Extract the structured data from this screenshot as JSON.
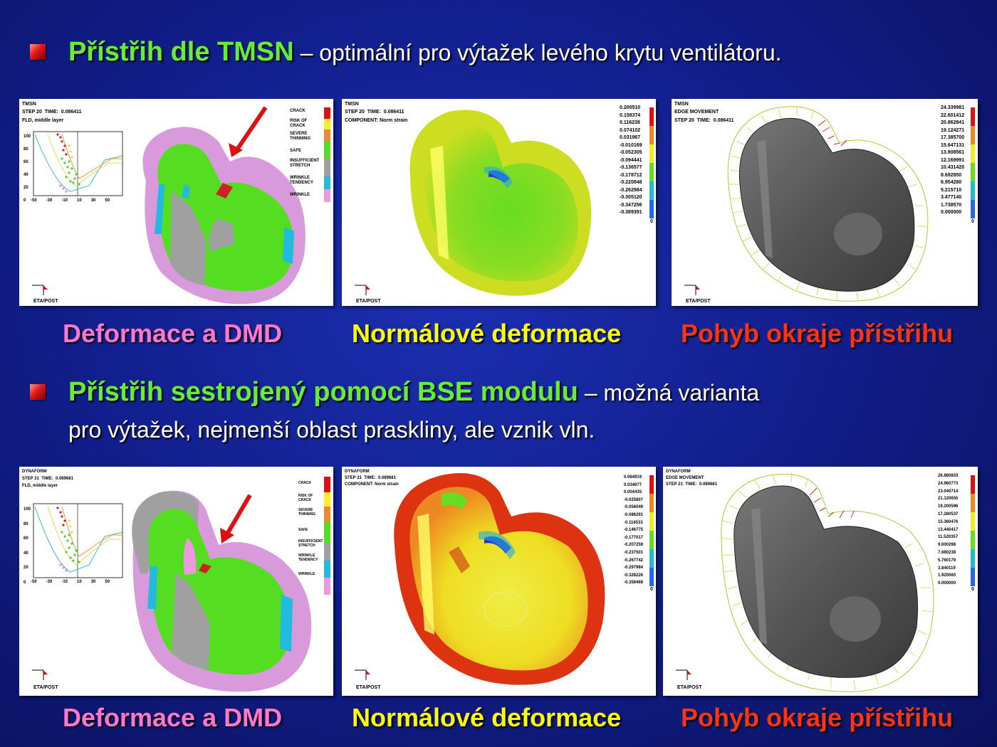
{
  "section1": {
    "heading": "Přístřih dle TMSN",
    "rest": " – optimální pro výtažek levého krytu ventilátoru."
  },
  "section2": {
    "heading": "Přístřih sestrojený pomocí BSE modulu",
    "rest": " – možná varianta",
    "line2": "pro výtažek, nejmenší oblast praskliny, ale vznik vln."
  },
  "captions": {
    "deformace": "Deformace a DMD",
    "normalove": "Normálové deformace",
    "pohyb": "Pohyb okraje přístřihu"
  },
  "colors": {
    "green": "#66ee33",
    "pink": "#ff77cc",
    "yellow": "#ffff00",
    "red": "#ff3311"
  },
  "row1": {
    "fld": {
      "title": "TMSN",
      "step": "STEP 20",
      "time_label": "TIME:",
      "time": "0.086411",
      "layer": "FLD, middle layer",
      "yticks": [
        "100",
        "80",
        "60",
        "40",
        "20",
        "0"
      ],
      "xticks": [
        "-50",
        "-30",
        "-10",
        "10",
        "30",
        "50"
      ],
      "legend": [
        "CRACK",
        "RISK OF CRACK",
        "SEVERE THINNING",
        "SAFE",
        "INSUFFICIENT STRETCH",
        "WRINKLE TENDENCY",
        "WRINKLE"
      ],
      "axis": "ETA/POST"
    },
    "norm": {
      "title": "TMSN",
      "step": "STEP 20",
      "time_label": "TIME:",
      "time": "0.086411",
      "component": "COMPONENT: Norm strain",
      "values": [
        "0.200510",
        "0.158374",
        "0.116238",
        "0.074102",
        "0.031967",
        "-0.010169",
        "-0.052305",
        "-0.094441",
        "-0.136577",
        "-0.178712",
        "-0.220848",
        "-0.262984",
        "-0.305120",
        "-0.347256",
        "-0.389391"
      ],
      "zero": "0",
      "axis": "ETA/POST"
    },
    "edge": {
      "title": "TMSN",
      "label": "EDGE MOVEMENT",
      "step": "STEP 20",
      "time_label": "TIME:",
      "time": "0.086411",
      "values": [
        "24.339981",
        "22.601412",
        "20.862841",
        "19.124271",
        "17.385700",
        "15.647131",
        "13.908561",
        "12.169991",
        "10.431420",
        "8.692850",
        "6.954280",
        "5.215710",
        "3.477140",
        "1.738570",
        "0.000000"
      ],
      "zero": "0",
      "axis": "ETA/POST"
    }
  },
  "row2": {
    "fld": {
      "title": "DYNAFORM",
      "step": "STEP 21",
      "time_label": "TIME:",
      "time": "0.089681",
      "layer": "FLD, middle layer",
      "yticks": [
        "100",
        "80",
        "60",
        "40",
        "20",
        "0"
      ],
      "xticks": [
        "-50",
        "-30",
        "-10",
        "10",
        "30",
        "50"
      ],
      "legend": [
        "CRACK",
        "RISK OF CRACK",
        "SEVERE THINNING",
        "SAFE",
        "INSUFFICIENT STRETCH",
        "WRINKLE TENDENCY",
        "WRINKLE"
      ],
      "axis": "ETA/POST"
    },
    "norm": {
      "title": "DYNAFORM",
      "step": "STEP 21",
      "time_label": "TIME:",
      "time": "0.089681",
      "component": "COMPONENT: Norm strain",
      "values": [
        "0.064919",
        "0.034677",
        "0.004435",
        "-0.025807",
        "-0.056049",
        "-0.086291",
        "-0.116533",
        "-0.146775",
        "-0.177017",
        "-0.207259",
        "-0.237501",
        "-0.267742",
        "-0.297984",
        "-0.328226",
        "-0.358468"
      ],
      "zero": "0",
      "axis": "ETA/POST"
    },
    "edge": {
      "title": "DYNAFORM",
      "label": "EDGE MOVEMENT",
      "step": "STEP 21",
      "time_label": "TIME:",
      "time": "0.089681",
      "values": [
        "26.880833",
        "24.960773",
        "23.040714",
        "21.120655",
        "19.200596",
        "17.280537",
        "15.360476",
        "13.440417",
        "11.520357",
        "9.600298",
        "7.680238",
        "5.760179",
        "3.840119",
        "1.920060",
        "0.000000"
      ],
      "zero": "0",
      "axis": "ETA/POST"
    }
  }
}
